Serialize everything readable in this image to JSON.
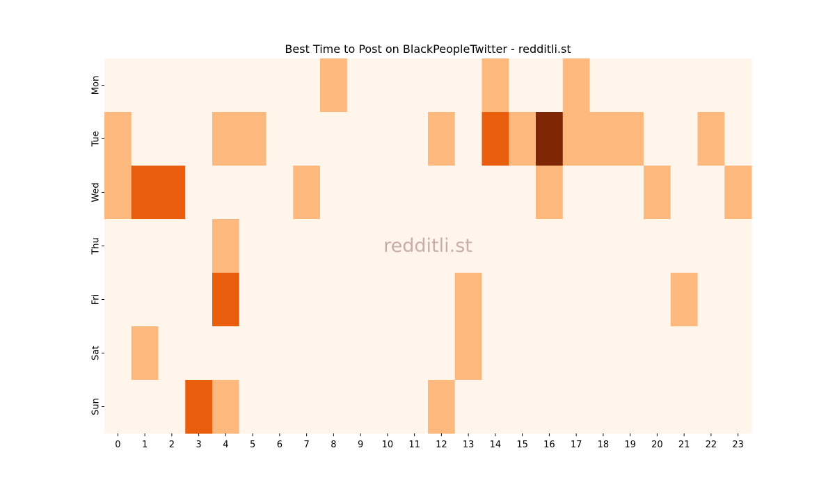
{
  "chart_data": {
    "type": "heatmap",
    "title": "Best Time to Post on BlackPeopleTwitter - redditli.st",
    "watermark": "redditli.st",
    "x_categories": [
      "0",
      "1",
      "2",
      "3",
      "4",
      "5",
      "6",
      "7",
      "8",
      "9",
      "10",
      "11",
      "12",
      "13",
      "14",
      "15",
      "16",
      "17",
      "18",
      "19",
      "20",
      "21",
      "22",
      "23"
    ],
    "y_categories": [
      "Mon",
      "Tue",
      "Wed",
      "Thu",
      "Fri",
      "Sat",
      "Sun"
    ],
    "values": [
      [
        0,
        0,
        0,
        0,
        0,
        0,
        0,
        0,
        1,
        0,
        0,
        0,
        0,
        0,
        1,
        0,
        0,
        1,
        0,
        0,
        0,
        0,
        0,
        0
      ],
      [
        1,
        0,
        0,
        0,
        1,
        1,
        0,
        0,
        0,
        0,
        0,
        0,
        1,
        0,
        2,
        1,
        3,
        1,
        1,
        1,
        0,
        0,
        1,
        0
      ],
      [
        1,
        2,
        2,
        0,
        0,
        0,
        0,
        1,
        0,
        0,
        0,
        0,
        0,
        0,
        0,
        0,
        1,
        0,
        0,
        0,
        1,
        0,
        0,
        1
      ],
      [
        0,
        0,
        0,
        0,
        1,
        0,
        0,
        0,
        0,
        0,
        0,
        0,
        0,
        0,
        0,
        0,
        0,
        0,
        0,
        0,
        0,
        0,
        0,
        0
      ],
      [
        0,
        0,
        0,
        0,
        2,
        0,
        0,
        0,
        0,
        0,
        0,
        0,
        0,
        1,
        0,
        0,
        0,
        0,
        0,
        0,
        0,
        1,
        0,
        0
      ],
      [
        0,
        1,
        0,
        0,
        0,
        0,
        0,
        0,
        0,
        0,
        0,
        0,
        0,
        1,
        0,
        0,
        0,
        0,
        0,
        0,
        0,
        0,
        0,
        0
      ],
      [
        0,
        0,
        0,
        2,
        1,
        0,
        0,
        0,
        0,
        0,
        0,
        0,
        1,
        0,
        0,
        0,
        0,
        0,
        0,
        0,
        0,
        0,
        0,
        0
      ]
    ],
    "colormap": [
      "#fff5eb",
      "#fdb97d",
      "#e95e0d",
      "#7f2704"
    ]
  }
}
